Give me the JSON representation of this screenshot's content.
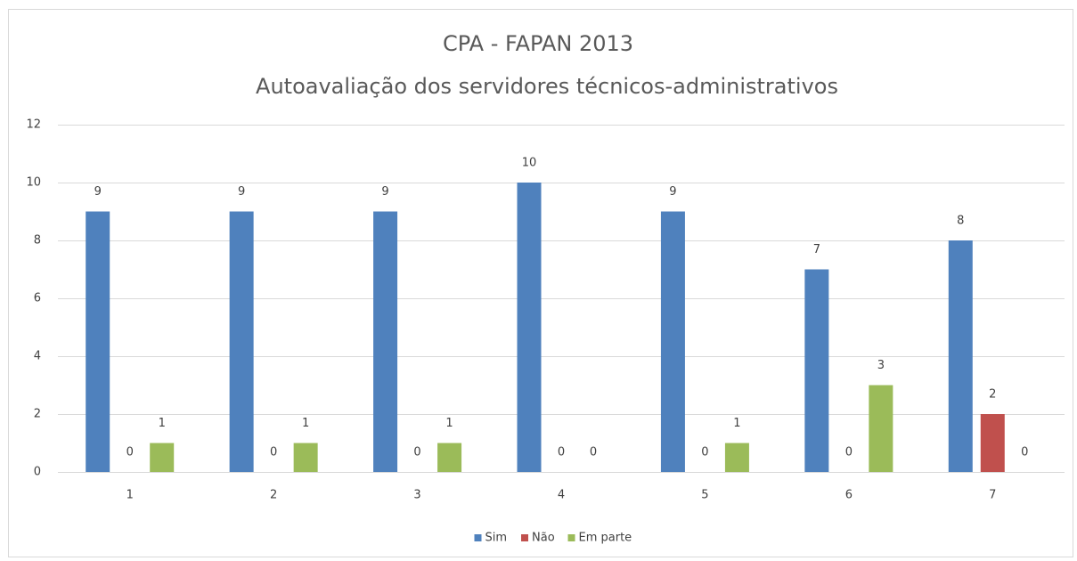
{
  "chart_data": {
    "type": "bar",
    "title": "CPA - FAPAN 2013",
    "subtitle": "Autoavaliação dos servidores técnicos-administrativos",
    "categories": [
      "1",
      "2",
      "3",
      "4",
      "5",
      "6",
      "7"
    ],
    "series": [
      {
        "name": "Sim",
        "color": "#4f81bd",
        "values": [
          9,
          9,
          9,
          10,
          9,
          7,
          8
        ]
      },
      {
        "name": "Não",
        "color": "#c0504d",
        "values": [
          0,
          0,
          0,
          0,
          0,
          0,
          2
        ]
      },
      {
        "name": "Em parte",
        "color": "#9bbb59",
        "values": [
          1,
          1,
          1,
          0,
          1,
          3,
          0
        ]
      }
    ],
    "ylim": [
      0,
      12
    ],
    "yticks": [
      0,
      2,
      4,
      6,
      8,
      10,
      12
    ],
    "grid": true,
    "legend": "bottom"
  }
}
